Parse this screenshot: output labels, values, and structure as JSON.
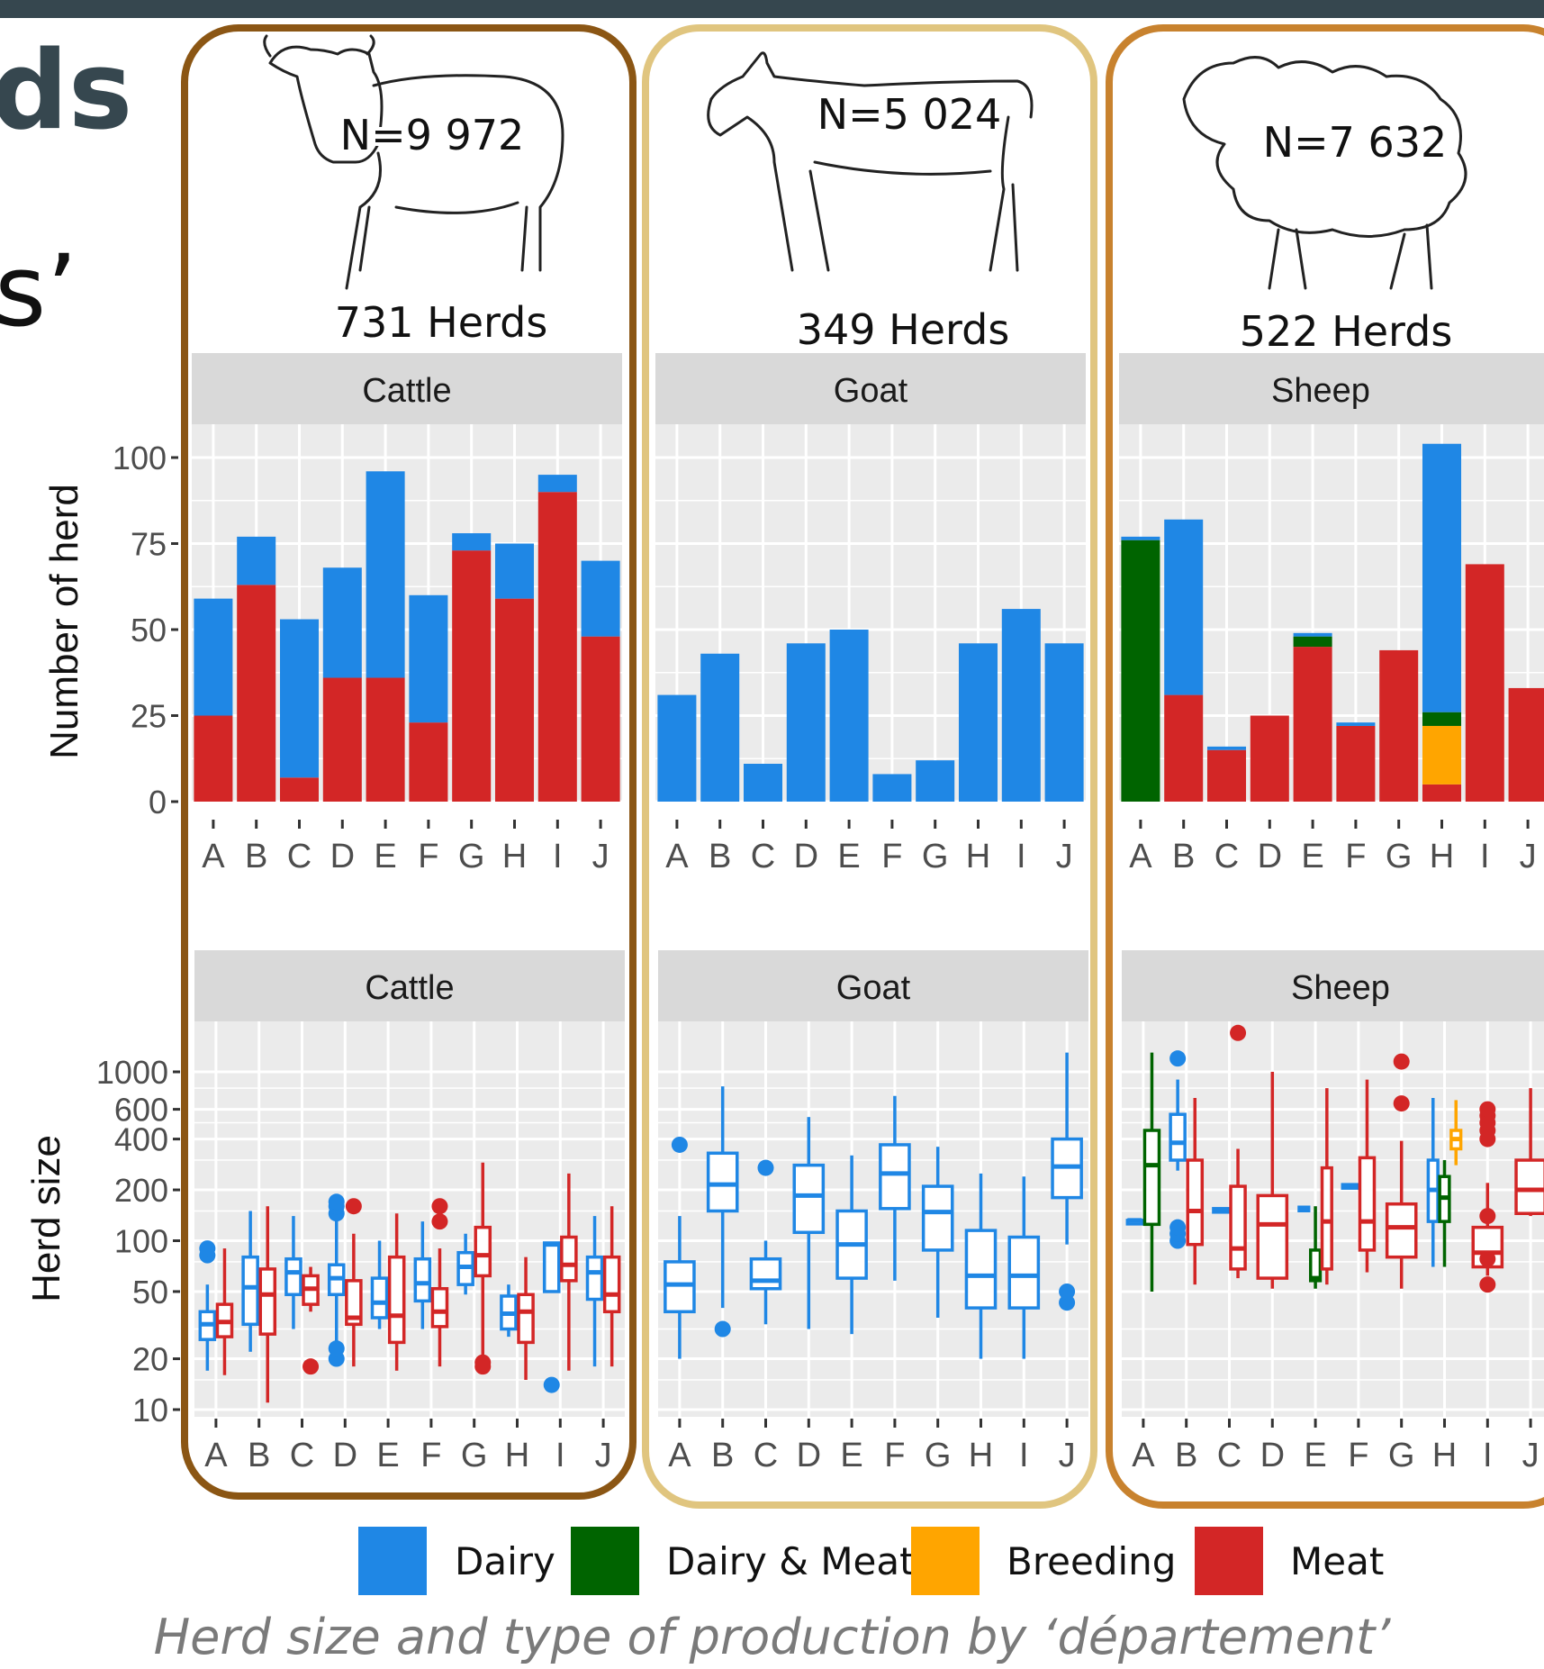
{
  "slide": {
    "title_fragment": "ds",
    "quote_fragment": "s’",
    "caption": "Herd size and type of production by ‘département’"
  },
  "colors": {
    "Dairy": "#1f87e5",
    "Dairy & Meat": "#006400",
    "Breeding": "#ffa500",
    "Meat": "#d32626",
    "cattle_frame": "#8b5614",
    "goat_frame": "#e0c57f",
    "sheep_frame": "#c8822e",
    "panel_bg": "#ebebeb",
    "strip_bg": "#d9d9d9"
  },
  "legend": [
    "Dairy",
    "Dairy & Meat",
    "Breeding",
    "Meat"
  ],
  "species": [
    {
      "name": "Cattle",
      "count": "N=9 972",
      "herds": "731 Herds",
      "icon": "cow-drawing-icon"
    },
    {
      "name": "Goat",
      "count": "N=5 024",
      "herds": "349 Herds",
      "icon": "goat-drawing-icon"
    },
    {
      "name": "Sheep",
      "count": "N=7 632",
      "herds": "522 Herds",
      "icon": "sheep-drawing-icon"
    }
  ],
  "chart_data": [
    {
      "type": "bar",
      "stacked": true,
      "ylabel": "Number of herd",
      "yticks": [
        0,
        25,
        50,
        75,
        100
      ],
      "ylim": [
        0,
        105
      ],
      "categories": [
        "A",
        "B",
        "C",
        "D",
        "E",
        "F",
        "G",
        "H",
        "I",
        "J"
      ],
      "facets": [
        {
          "name": "Cattle",
          "series": [
            {
              "name": "Meat",
              "values": [
                25,
                63,
                7,
                36,
                36,
                23,
                73,
                59,
                90,
                48
              ]
            },
            {
              "name": "Dairy",
              "values": [
                34,
                14,
                46,
                32,
                60,
                37,
                5,
                16,
                5,
                22
              ]
            }
          ]
        },
        {
          "name": "Goat",
          "series": [
            {
              "name": "Dairy",
              "values": [
                31,
                43,
                11,
                46,
                50,
                8,
                12,
                46,
                56,
                46
              ]
            }
          ]
        },
        {
          "name": "Sheep",
          "series": [
            {
              "name": "Meat",
              "values": [
                0,
                31,
                15,
                25,
                45,
                22,
                44,
                5,
                69,
                33
              ]
            },
            {
              "name": "Breeding",
              "values": [
                0,
                0,
                0,
                0,
                0,
                0,
                0,
                17,
                0,
                0
              ]
            },
            {
              "name": "Dairy & Meat",
              "values": [
                76,
                0,
                0,
                0,
                3,
                0,
                0,
                4,
                0,
                0
              ]
            },
            {
              "name": "Dairy",
              "values": [
                1,
                51,
                1,
                0,
                1,
                1,
                0,
                78,
                0,
                0
              ]
            }
          ]
        }
      ],
      "grid": true
    },
    {
      "type": "box",
      "ylabel": "Herd size",
      "yscale": "log",
      "yticks": [
        10,
        20,
        50,
        100,
        200,
        400,
        600,
        1000
      ],
      "categories": [
        "A",
        "B",
        "C",
        "D",
        "E",
        "F",
        "G",
        "H",
        "I",
        "J"
      ],
      "facets": [
        {
          "name": "Cattle",
          "boxes": [
            {
              "cat": "A",
              "type": "Dairy",
              "min": 17,
              "q1": 26,
              "median": 32,
              "q3": 38,
              "max": 55,
              "outliers": [
                82,
                90
              ]
            },
            {
              "cat": "A",
              "type": "Meat",
              "min": 16,
              "q1": 27,
              "median": 33,
              "q3": 42,
              "max": 90,
              "outliers": []
            },
            {
              "cat": "B",
              "type": "Dairy",
              "min": 22,
              "q1": 32,
              "median": 53,
              "q3": 80,
              "max": 150,
              "outliers": []
            },
            {
              "cat": "B",
              "type": "Meat",
              "min": 11,
              "q1": 28,
              "median": 48,
              "q3": 68,
              "max": 160,
              "outliers": []
            },
            {
              "cat": "C",
              "type": "Dairy",
              "min": 30,
              "q1": 48,
              "median": 65,
              "q3": 78,
              "max": 140,
              "outliers": []
            },
            {
              "cat": "C",
              "type": "Meat",
              "min": 38,
              "q1": 42,
              "median": 52,
              "q3": 62,
              "max": 70,
              "outliers": [
                18
              ]
            },
            {
              "cat": "D",
              "type": "Dairy",
              "min": 25,
              "q1": 48,
              "median": 60,
              "q3": 72,
              "max": 150,
              "outliers": [
                20,
                23,
                145,
                160,
                170
              ]
            },
            {
              "cat": "D",
              "type": "Meat",
              "min": 18,
              "q1": 32,
              "median": 35,
              "q3": 58,
              "max": 110,
              "outliers": [
                160
              ]
            },
            {
              "cat": "E",
              "type": "Dairy",
              "min": 30,
              "q1": 35,
              "median": 43,
              "q3": 60,
              "max": 100,
              "outliers": []
            },
            {
              "cat": "E",
              "type": "Meat",
              "min": 17,
              "q1": 25,
              "median": 36,
              "q3": 80,
              "max": 145,
              "outliers": []
            },
            {
              "cat": "F",
              "type": "Dairy",
              "min": 30,
              "q1": 44,
              "median": 56,
              "q3": 78,
              "max": 130,
              "outliers": []
            },
            {
              "cat": "F",
              "type": "Meat",
              "min": 18,
              "q1": 31,
              "median": 38,
              "q3": 52,
              "max": 90,
              "outliers": [
                130,
                160
              ]
            },
            {
              "cat": "G",
              "type": "Dairy",
              "min": 48,
              "q1": 55,
              "median": 70,
              "q3": 85,
              "max": 110,
              "outliers": []
            },
            {
              "cat": "G",
              "type": "Meat",
              "min": 20,
              "q1": 62,
              "median": 82,
              "q3": 120,
              "max": 290,
              "outliers": [
                18,
                19
              ]
            },
            {
              "cat": "H",
              "type": "Dairy",
              "min": 27,
              "q1": 30,
              "median": 37,
              "q3": 47,
              "max": 55,
              "outliers": []
            },
            {
              "cat": "H",
              "type": "Meat",
              "min": 15,
              "q1": 25,
              "median": 38,
              "q3": 48,
              "max": 80,
              "outliers": []
            },
            {
              "cat": "I",
              "type": "Dairy",
              "min": 50,
              "q1": 50,
              "median": 95,
              "q3": 97,
              "max": 97,
              "outliers": [
                14
              ]
            },
            {
              "cat": "I",
              "type": "Meat",
              "min": 17,
              "q1": 58,
              "median": 72,
              "q3": 105,
              "max": 250,
              "outliers": []
            },
            {
              "cat": "J",
              "type": "Dairy",
              "min": 18,
              "q1": 45,
              "median": 65,
              "q3": 80,
              "max": 140,
              "outliers": []
            },
            {
              "cat": "J",
              "type": "Meat",
              "min": 18,
              "q1": 38,
              "median": 48,
              "q3": 80,
              "max": 160,
              "outliers": []
            }
          ]
        },
        {
          "name": "Goat",
          "boxes": [
            {
              "cat": "A",
              "type": "Dairy",
              "min": 20,
              "q1": 38,
              "median": 55,
              "q3": 75,
              "max": 140,
              "outliers": [
                370
              ]
            },
            {
              "cat": "B",
              "type": "Dairy",
              "min": 40,
              "q1": 150,
              "median": 215,
              "q3": 330,
              "max": 820,
              "outliers": [
                30
              ]
            },
            {
              "cat": "C",
              "type": "Dairy",
              "min": 32,
              "q1": 52,
              "median": 58,
              "q3": 78,
              "max": 100,
              "outliers": [
                270
              ]
            },
            {
              "cat": "D",
              "type": "Dairy",
              "min": 30,
              "q1": 112,
              "median": 185,
              "q3": 280,
              "max": 540,
              "outliers": []
            },
            {
              "cat": "E",
              "type": "Dairy",
              "min": 28,
              "q1": 60,
              "median": 95,
              "q3": 150,
              "max": 320,
              "outliers": []
            },
            {
              "cat": "F",
              "type": "Dairy",
              "min": 58,
              "q1": 155,
              "median": 250,
              "q3": 370,
              "max": 720,
              "outliers": []
            },
            {
              "cat": "G",
              "type": "Dairy",
              "min": 35,
              "q1": 88,
              "median": 148,
              "q3": 210,
              "max": 360,
              "outliers": []
            },
            {
              "cat": "H",
              "type": "Dairy",
              "min": 20,
              "q1": 40,
              "median": 62,
              "q3": 115,
              "max": 250,
              "outliers": []
            },
            {
              "cat": "I",
              "type": "Dairy",
              "min": 20,
              "q1": 40,
              "median": 62,
              "q3": 105,
              "max": 240,
              "outliers": []
            },
            {
              "cat": "J",
              "type": "Dairy",
              "min": 95,
              "q1": 180,
              "median": 275,
              "q3": 400,
              "max": 1300,
              "outliers": [
                43,
                50
              ]
            }
          ]
        },
        {
          "name": "Sheep",
          "boxes": [
            {
              "cat": "A",
              "type": "Dairy",
              "min": 132,
              "q1": 132,
              "median": 132,
              "q3": 132,
              "max": 132,
              "outliers": []
            },
            {
              "cat": "A",
              "type": "Dairy & Meat",
              "min": 50,
              "q1": 125,
              "median": 280,
              "q3": 450,
              "max": 1300,
              "outliers": []
            },
            {
              "cat": "B",
              "type": "Dairy",
              "min": 260,
              "q1": 300,
              "median": 380,
              "q3": 560,
              "max": 900,
              "outliers": [
                100,
                110,
                120,
                1200
              ]
            },
            {
              "cat": "B",
              "type": "Meat",
              "min": 55,
              "q1": 95,
              "median": 150,
              "q3": 300,
              "max": 700,
              "outliers": []
            },
            {
              "cat": "C",
              "type": "Dairy",
              "min": 150,
              "q1": 150,
              "median": 152,
              "q3": 155,
              "max": 155,
              "outliers": []
            },
            {
              "cat": "C",
              "type": "Meat",
              "min": 60,
              "q1": 68,
              "median": 90,
              "q3": 210,
              "max": 350,
              "outliers": [
                1700
              ]
            },
            {
              "cat": "D",
              "type": "Meat",
              "min": 52,
              "q1": 60,
              "median": 125,
              "q3": 185,
              "max": 1000,
              "outliers": []
            },
            {
              "cat": "E",
              "type": "Dairy",
              "min": 155,
              "q1": 155,
              "median": 155,
              "q3": 158,
              "max": 158,
              "outliers": []
            },
            {
              "cat": "E",
              "type": "Dairy & Meat",
              "min": 52,
              "q1": 58,
              "median": 60,
              "q3": 88,
              "max": 160,
              "outliers": []
            },
            {
              "cat": "E",
              "type": "Meat",
              "min": 55,
              "q1": 68,
              "median": 130,
              "q3": 270,
              "max": 800,
              "outliers": []
            },
            {
              "cat": "F",
              "type": "Dairy",
              "min": 210,
              "q1": 210,
              "median": 212,
              "q3": 215,
              "max": 215,
              "outliers": []
            },
            {
              "cat": "F",
              "type": "Meat",
              "min": 65,
              "q1": 88,
              "median": 130,
              "q3": 310,
              "max": 900,
              "outliers": []
            },
            {
              "cat": "G",
              "type": "Meat",
              "min": 52,
              "q1": 80,
              "median": 120,
              "q3": 165,
              "max": 390,
              "outliers": [
                650,
                1150
              ]
            },
            {
              "cat": "H",
              "type": "Dairy",
              "min": 70,
              "q1": 130,
              "median": 200,
              "q3": 300,
              "max": 700,
              "outliers": []
            },
            {
              "cat": "H",
              "type": "Dairy & Meat",
              "min": 70,
              "q1": 130,
              "median": 180,
              "q3": 240,
              "max": 300,
              "outliers": []
            },
            {
              "cat": "H",
              "type": "Breeding",
              "min": 280,
              "q1": 350,
              "median": 400,
              "q3": 450,
              "max": 680,
              "outliers": []
            },
            {
              "cat": "I",
              "type": "Meat",
              "min": 62,
              "q1": 70,
              "median": 85,
              "q3": 120,
              "max": 220,
              "outliers": [
                55,
                78,
                140,
                400,
                450,
                500,
                550,
                600
              ]
            },
            {
              "cat": "J",
              "type": "Meat",
              "min": 140,
              "q1": 145,
              "median": 200,
              "q3": 300,
              "max": 800,
              "outliers": []
            }
          ]
        }
      ],
      "grid": true
    }
  ]
}
